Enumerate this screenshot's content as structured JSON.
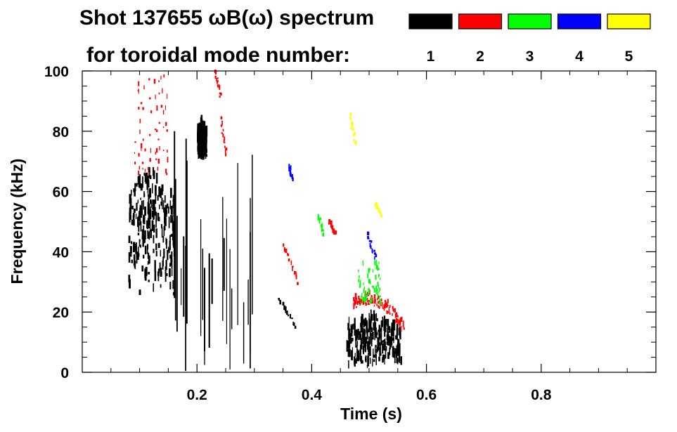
{
  "chart_data": {
    "type": "heatmap",
    "title_line1": "Shot 137655 ωB(ω) spectrum",
    "title_line2": "for toroidal mode number:",
    "xlabel": "Time (s)",
    "ylabel": "Frequency (kHz)",
    "xlim": [
      0.0,
      1.0
    ],
    "ylim": [
      0,
      100
    ],
    "x_ticks": [
      0.2,
      0.4,
      0.6,
      0.8
    ],
    "x_tick_labels": [
      "0.2",
      "0.4",
      "0.6",
      "0.8"
    ],
    "y_ticks": [
      0,
      20,
      40,
      60,
      80,
      100
    ],
    "y_tick_labels": [
      "0",
      "20",
      "40",
      "60",
      "80",
      "100"
    ],
    "legend_placement": "top",
    "legend": [
      {
        "label": "1",
        "color": "#000000"
      },
      {
        "label": "2",
        "color": "#ff0000"
      },
      {
        "label": "3",
        "color": "#00ff00"
      },
      {
        "label": "4",
        "color": "#0000ff"
      },
      {
        "label": "5",
        "color": "#ffff00"
      }
    ],
    "features": [
      {
        "mode": 1,
        "t": [
          0.08,
          0.16
        ],
        "f": [
          25,
          68
        ],
        "kind": "blob"
      },
      {
        "mode": 1,
        "t": [
          0.15,
          0.3
        ],
        "f": [
          0,
          80
        ],
        "kind": "streaks"
      },
      {
        "mode": 1,
        "t": [
          0.2,
          0.215
        ],
        "f": [
          70,
          82
        ],
        "kind": "blob"
      },
      {
        "mode": 1,
        "t": [
          0.34,
          0.37
        ],
        "f": [
          15,
          25
        ],
        "kind": "streak"
      },
      {
        "mode": 1,
        "t": [
          0.46,
          0.555
        ],
        "f": [
          1,
          18
        ],
        "kind": "blob"
      },
      {
        "mode": 2,
        "t": [
          0.09,
          0.15
        ],
        "f": [
          65,
          98
        ],
        "kind": "speckle"
      },
      {
        "mode": 2,
        "t": [
          0.23,
          0.24
        ],
        "f": [
          92,
          100
        ],
        "kind": "streak"
      },
      {
        "mode": 2,
        "t": [
          0.24,
          0.25
        ],
        "f": [
          72,
          85
        ],
        "kind": "streak"
      },
      {
        "mode": 2,
        "t": [
          0.35,
          0.375
        ],
        "f": [
          30,
          42
        ],
        "kind": "streak"
      },
      {
        "mode": 2,
        "t": [
          0.43,
          0.44
        ],
        "f": [
          46,
          50
        ],
        "kind": "streak"
      },
      {
        "mode": 2,
        "t": [
          0.47,
          0.56
        ],
        "f": [
          14,
          24
        ],
        "kind": "arc"
      },
      {
        "mode": 3,
        "t": [
          0.48,
          0.52
        ],
        "f": [
          22,
          36
        ],
        "kind": "speckle"
      },
      {
        "mode": 3,
        "t": [
          0.41,
          0.42
        ],
        "f": [
          46,
          52
        ],
        "kind": "streak"
      },
      {
        "mode": 4,
        "t": [
          0.495,
          0.51
        ],
        "f": [
          38,
          46
        ],
        "kind": "streak"
      },
      {
        "mode": 4,
        "t": [
          0.36,
          0.365
        ],
        "f": [
          64,
          68
        ],
        "kind": "streak"
      },
      {
        "mode": 5,
        "t": [
          0.465,
          0.475
        ],
        "f": [
          76,
          86
        ],
        "kind": "streak"
      },
      {
        "mode": 5,
        "t": [
          0.51,
          0.52
        ],
        "f": [
          52,
          56
        ],
        "kind": "streak"
      }
    ]
  }
}
